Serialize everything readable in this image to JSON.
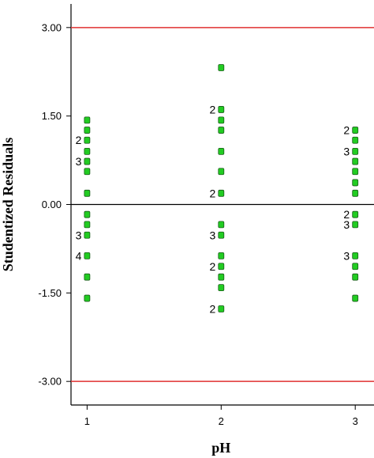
{
  "chart_data": {
    "type": "scatter",
    "xlabel": "pH",
    "ylabel": "Studentized Residuals",
    "x_ticks": [
      "1",
      "2",
      "3"
    ],
    "y_ticks": [
      "3.00",
      "1.50",
      "0.00",
      "-1.50",
      "-3.00"
    ],
    "ylim": [
      -3.4,
      3.4
    ],
    "xlim": [
      0.88,
      3.14
    ],
    "reference_lines": [
      3.0,
      0.0,
      -3.0
    ],
    "reference_line_colors": {
      "limit": "#e03030",
      "zero": "#000000"
    },
    "marker_color": "#22cc22",
    "marker_edge_color": "#1a5c1a",
    "grid": false,
    "points": [
      {
        "x": 1,
        "y": 1.43
      },
      {
        "x": 1,
        "y": 1.26
      },
      {
        "x": 1,
        "y": 1.09,
        "count": "2"
      },
      {
        "x": 1,
        "y": 0.9
      },
      {
        "x": 1,
        "y": 0.73,
        "count": "3"
      },
      {
        "x": 1,
        "y": 0.56
      },
      {
        "x": 1,
        "y": 0.19
      },
      {
        "x": 1,
        "y": -0.17
      },
      {
        "x": 1,
        "y": -0.34
      },
      {
        "x": 1,
        "y": -0.52,
        "count": "3"
      },
      {
        "x": 1,
        "y": -0.87,
        "count": "4"
      },
      {
        "x": 1,
        "y": -1.23
      },
      {
        "x": 1,
        "y": -1.59
      },
      {
        "x": 2,
        "y": 2.32
      },
      {
        "x": 2,
        "y": 1.61,
        "count": "2"
      },
      {
        "x": 2,
        "y": 1.43
      },
      {
        "x": 2,
        "y": 1.26
      },
      {
        "x": 2,
        "y": 0.9
      },
      {
        "x": 2,
        "y": 0.56
      },
      {
        "x": 2,
        "y": 0.19,
        "count": "2"
      },
      {
        "x": 2,
        "y": -0.34
      },
      {
        "x": 2,
        "y": -0.52,
        "count": "3"
      },
      {
        "x": 2,
        "y": -0.87
      },
      {
        "x": 2,
        "y": -1.05,
        "count": "2"
      },
      {
        "x": 2,
        "y": -1.23
      },
      {
        "x": 2,
        "y": -1.41
      },
      {
        "x": 2,
        "y": -1.77,
        "count": "2"
      },
      {
        "x": 3,
        "y": 1.26,
        "count": "2"
      },
      {
        "x": 3,
        "y": 1.09
      },
      {
        "x": 3,
        "y": 0.9,
        "count": "3"
      },
      {
        "x": 3,
        "y": 0.73
      },
      {
        "x": 3,
        "y": 0.56
      },
      {
        "x": 3,
        "y": 0.37
      },
      {
        "x": 3,
        "y": 0.19
      },
      {
        "x": 3,
        "y": -0.17,
        "count": "2"
      },
      {
        "x": 3,
        "y": -0.34,
        "count": "3"
      },
      {
        "x": 3,
        "y": -0.87,
        "count": "3"
      },
      {
        "x": 3,
        "y": -1.05
      },
      {
        "x": 3,
        "y": -1.23
      },
      {
        "x": 3,
        "y": -1.59
      }
    ]
  }
}
